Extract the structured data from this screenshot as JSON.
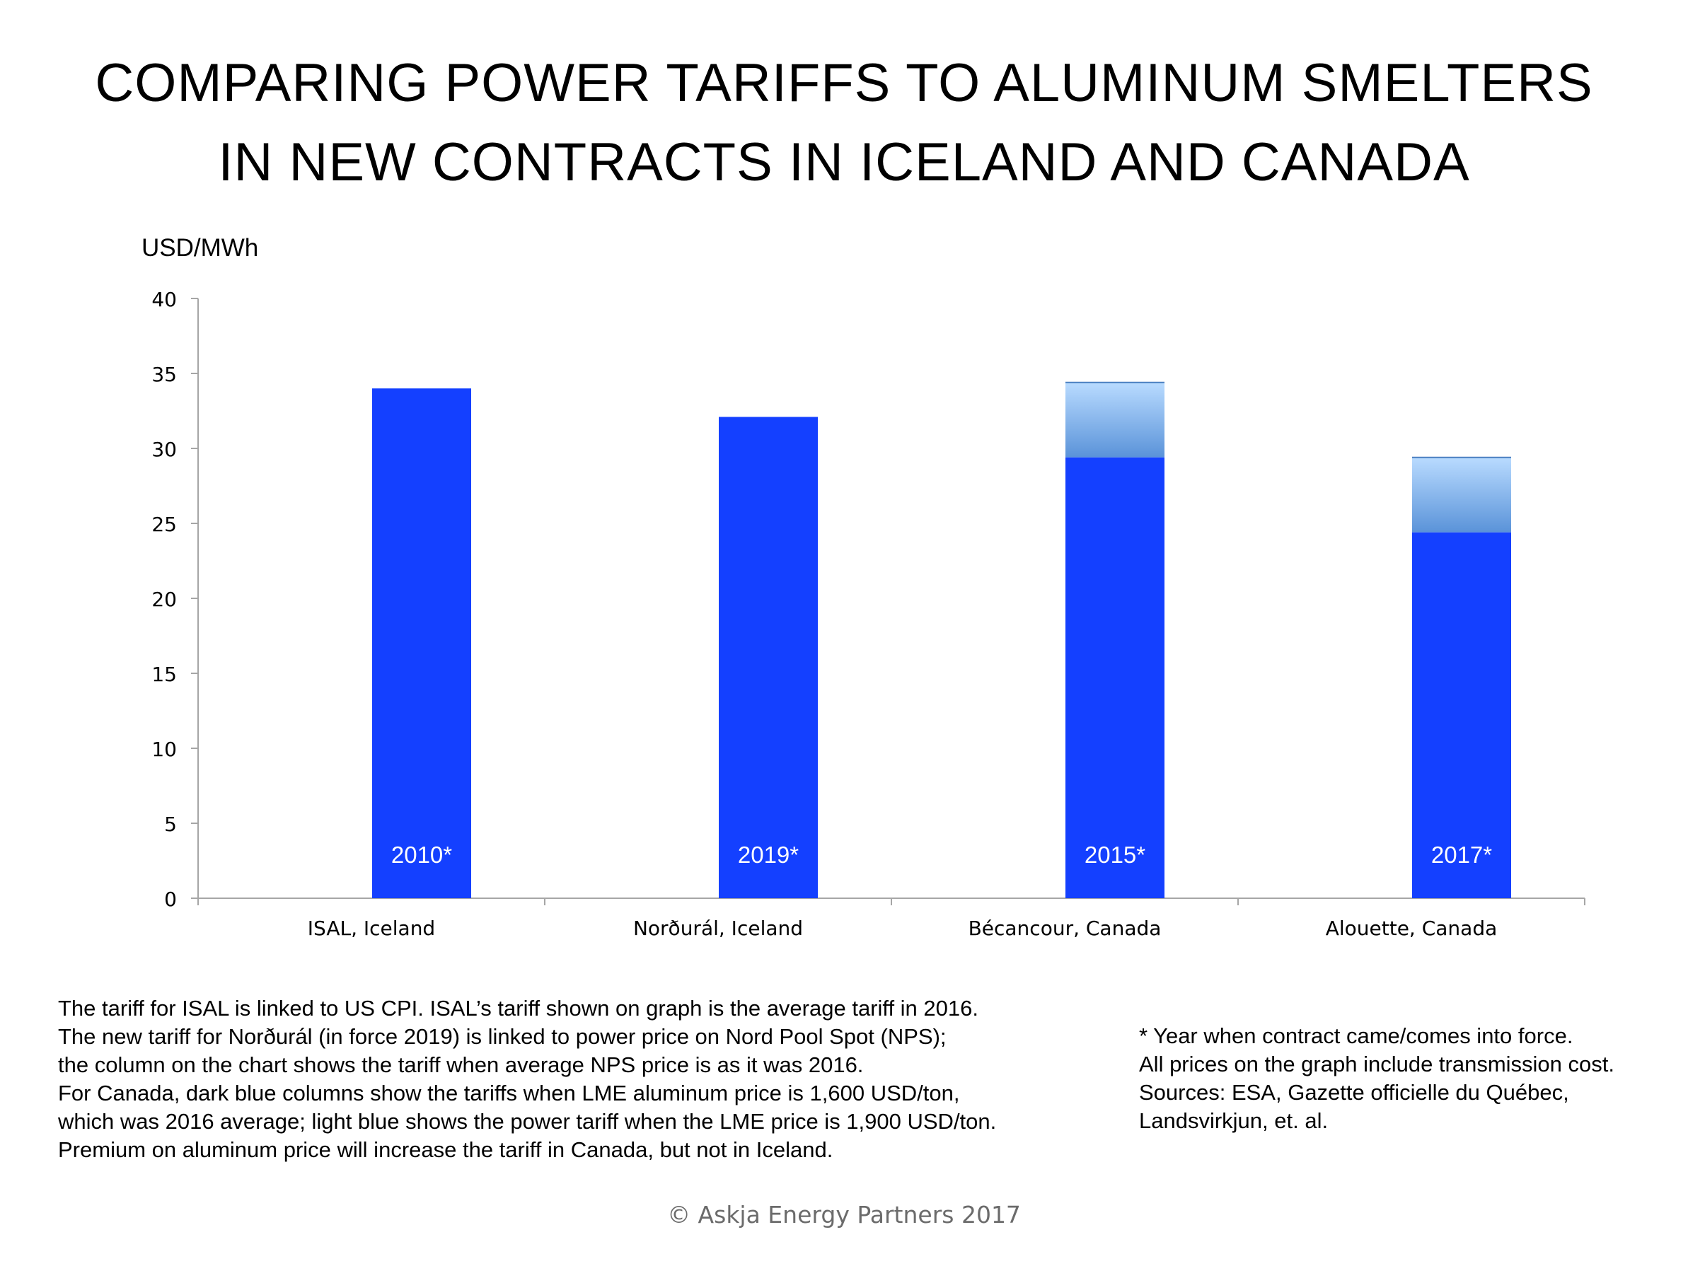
{
  "title": {
    "line1": "COMPARING POWER TARIFFS TO ALUMINUM SMELTERS",
    "line2": "IN NEW CONTRACTS IN ICELAND AND CANADA"
  },
  "chart_data": {
    "type": "bar",
    "title": "COMPARING POWER TARIFFS TO ALUMINUM SMELTERS IN NEW CONTRACTS IN ICELAND AND CANADA",
    "ylabel": "USD/MWh",
    "xlabel": "",
    "ylim": [
      0,
      40
    ],
    "yticks": [
      0,
      5,
      10,
      15,
      20,
      25,
      30,
      35,
      40
    ],
    "categories": [
      "ISAL, Iceland",
      "Norðurál, Iceland",
      "Bécancour, Canada",
      "Alouette, Canada"
    ],
    "bar_labels": [
      "2010*",
      "2019*",
      "2015*",
      "2017*"
    ],
    "series": [
      {
        "name": "Tariff (LME 1,600 USD/ton / 2016 conditions)",
        "color": "#1440FF",
        "values": [
          34.0,
          32.1,
          29.4,
          24.4
        ]
      },
      {
        "name": "Tariff at LME 1,900 USD/ton",
        "color": "#8FBEF0",
        "values": [
          34.0,
          32.1,
          34.4,
          29.4
        ]
      }
    ],
    "grid": false
  },
  "notes_left": [
    "The tariff for ISAL is linked to US CPI. ISAL’s tariff shown on graph is the average tariff in 2016.",
    "The new tariff for Norðurál (in force 2019) is linked to power price on Nord Pool Spot (NPS);",
    "the column on the chart shows the tariff when average NPS price is as it was 2016.",
    "For Canada, dark blue columns show the tariffs when LME aluminum price is 1,600 USD/ton,",
    "which was 2016 average; light blue shows the power tariff when the LME price is 1,900 USD/ton.",
    "Premium on aluminum price will increase the tariff in Canada, but not in Iceland."
  ],
  "notes_right": [
    "* Year when contract came/comes into force.",
    "All prices on the graph include transmission cost.",
    "Sources: ESA, Gazette officielle du Québec,",
    "Landsvirkjun, et. al."
  ],
  "copyright": "© Askja Energy Partners 2017"
}
